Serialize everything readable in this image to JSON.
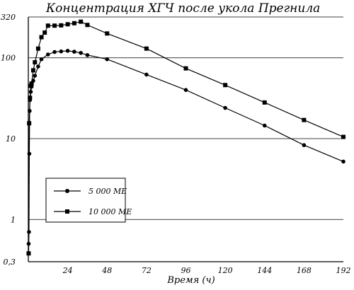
{
  "chart_data": {
    "type": "line",
    "title": "Концентрация ХГЧ после укола Прегнила",
    "xlabel": "Время (ч)",
    "ylabel": "",
    "x_scale": "linear",
    "y_scale": "log",
    "xlim": [
      0,
      192
    ],
    "ylim": [
      0.3,
      320
    ],
    "x_ticks": [
      24,
      48,
      72,
      96,
      120,
      144,
      168,
      192
    ],
    "x_tick_labels": [
      "24",
      "48",
      "72",
      "96",
      "120",
      "144",
      "168",
      "192"
    ],
    "y_ticks": [
      0.3,
      1,
      10,
      100,
      320
    ],
    "y_tick_labels": [
      "0,3",
      "1",
      "10",
      "100",
      "320"
    ],
    "grid": {
      "horizontal": true,
      "vertical": false,
      "lines_at": [
        1,
        10,
        100,
        320
      ]
    },
    "legend": {
      "placement": "bottom-left",
      "boxed": true
    },
    "series": [
      {
        "name": "5 000 МЕ",
        "marker": "circle",
        "color": "#000000",
        "x": [
          0.2,
          0.4,
          0.6,
          0.8,
          1,
          1.5,
          2,
          3,
          4,
          6,
          8,
          12,
          16,
          20,
          24,
          28,
          32,
          36,
          48,
          72,
          96,
          120,
          144,
          168,
          192
        ],
        "y": [
          0.5,
          0.7,
          6.5,
          22,
          30,
          38,
          44,
          52,
          60,
          78,
          96,
          110,
          118,
          120,
          122,
          119,
          115,
          108,
          96,
          62,
          40,
          24,
          14.5,
          8.3,
          5.2
        ]
      },
      {
        "name": "10 000 МЕ",
        "marker": "square",
        "color": "#000000",
        "x": [
          0.2,
          0.5,
          1,
          1.5,
          2,
          3,
          4,
          6,
          8,
          10,
          12,
          16,
          20,
          24,
          28,
          32,
          36,
          48,
          72,
          96,
          120,
          144,
          168,
          192
        ],
        "y": [
          0.38,
          15.5,
          32,
          45,
          48,
          70,
          88,
          130,
          180,
          205,
          250,
          250,
          252,
          260,
          268,
          280,
          255,
          200,
          130,
          74,
          46,
          28,
          17,
          10.5
        ]
      }
    ]
  }
}
